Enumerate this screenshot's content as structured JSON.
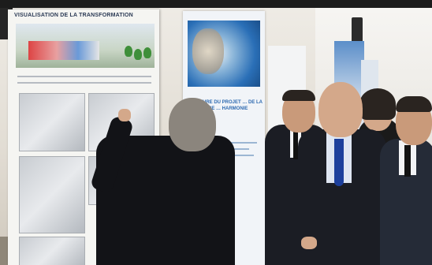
{
  "scene": {
    "description_kind": "photograph",
    "banners": {
      "left_title": "VISUALISATION DE LA TRANSFORMATION",
      "middle_caption": "FAIRE DU PROJET … DE LA TERRE … HARMONIE"
    },
    "colors": {
      "banner_blue": "#2a6fb7",
      "suit": "#1b1d24",
      "tie": "#1c3f9c"
    }
  }
}
